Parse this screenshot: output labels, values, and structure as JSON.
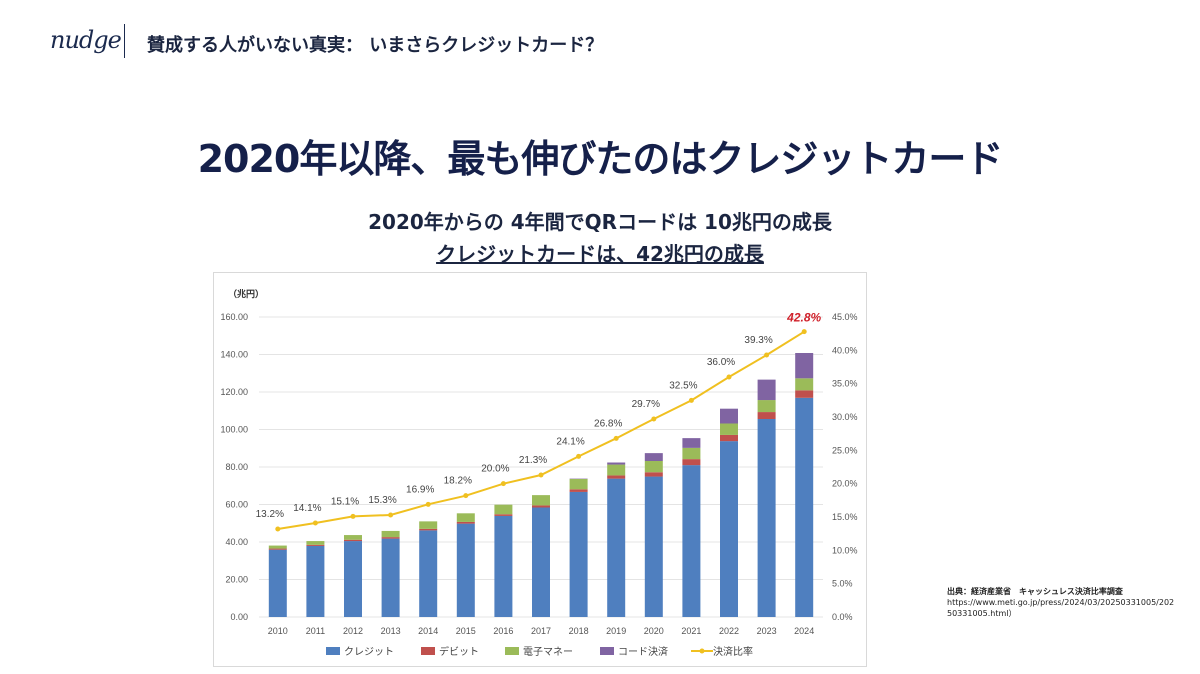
{
  "header": {
    "logo": "nudge",
    "topic": "賛成する人がいない真実： いまさらクレジットカード？"
  },
  "headline": "2020年以降、最も伸びたのはクレジットカード",
  "subtitle_1": "2020年からの 4年間でQRコードは 10兆円の成長",
  "subtitle_2": "クレジットカードは、42兆円の成長",
  "source": {
    "line1": "出典：経済産業省　キャッシュレス決済比率調査",
    "line2": "https://www.meti.go.jp/press/2024/03/20250331005/202",
    "line3": "50331005.html）"
  },
  "chart_data": {
    "type": "bar",
    "stacked": true,
    "ylabel": "（兆円）",
    "ylim": [
      0,
      160
    ],
    "y_ticks": [
      "0.00",
      "20.00",
      "40.00",
      "60.00",
      "80.00",
      "100.00",
      "120.00",
      "140.00",
      "160.00"
    ],
    "y2lim": [
      0,
      45
    ],
    "y2_ticks": [
      "0.0%",
      "5.0%",
      "10.0%",
      "15.0%",
      "20.0%",
      "25.0%",
      "30.0%",
      "35.0%",
      "40.0%",
      "45.0%"
    ],
    "categories": [
      "2010",
      "2011",
      "2012",
      "2013",
      "2014",
      "2015",
      "2016",
      "2017",
      "2018",
      "2019",
      "2020",
      "2021",
      "2022",
      "2023",
      "2024"
    ],
    "series": [
      {
        "name": "クレジット",
        "color": "#4f7fbf",
        "values": [
          35.9,
          37.9,
          40.5,
          41.8,
          46.2,
          49.8,
          53.9,
          58.4,
          66.7,
          73.8,
          74.9,
          81.0,
          93.8,
          105.6,
          116.9
        ]
      },
      {
        "name": "デビット",
        "color": "#c0504d",
        "values": [
          0.6,
          0.6,
          0.7,
          0.8,
          0.8,
          0.9,
          0.9,
          1.1,
          1.4,
          1.7,
          2.3,
          3.2,
          3.3,
          3.7,
          4.0
        ]
      },
      {
        "name": "電子マネー",
        "color": "#9bbb59",
        "values": [
          1.6,
          2.0,
          2.5,
          3.3,
          4.0,
          4.6,
          5.1,
          5.5,
          5.5,
          5.8,
          6.0,
          6.0,
          6.1,
          6.4,
          6.4
        ]
      },
      {
        "name": "コード決済",
        "color": "#8064a2",
        "values": [
          0,
          0,
          0,
          0,
          0,
          0,
          0,
          0,
          0.2,
          1.1,
          4.2,
          5.2,
          7.9,
          10.9,
          13.5
        ]
      }
    ],
    "line": {
      "name": "決済比率",
      "color": "#f0c020",
      "axis": "right",
      "values": [
        13.2,
        14.1,
        15.1,
        15.3,
        16.9,
        18.2,
        20.0,
        21.3,
        24.1,
        26.8,
        29.7,
        32.5,
        36.0,
        39.3,
        42.8
      ],
      "labels": [
        "13.2%",
        "14.1%",
        "15.1%",
        "15.3%",
        "16.9%",
        "18.2%",
        "20.0%",
        "21.3%",
        "24.1%",
        "26.8%",
        "29.7%",
        "32.5%",
        "36.0%",
        "39.3%",
        "42.8%"
      ],
      "highlight_color": "#d0202a"
    },
    "legend": "bottom",
    "grid": true
  }
}
